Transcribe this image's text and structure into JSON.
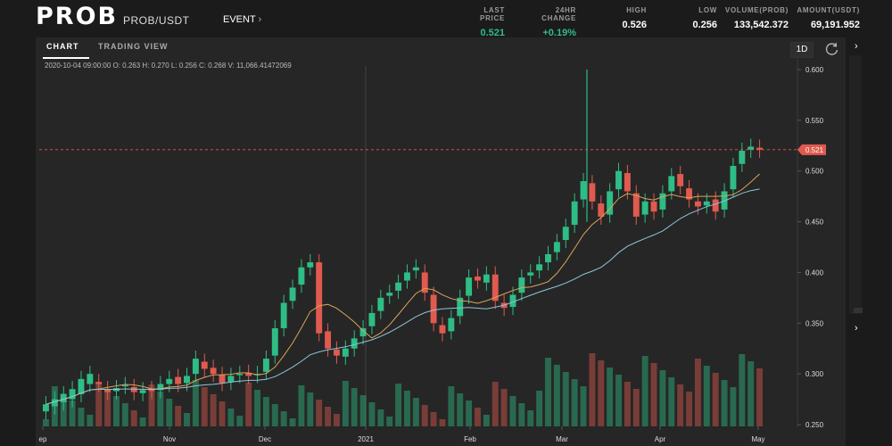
{
  "header": {
    "logo": "PROB",
    "pair": "PROB/USDT",
    "event_label": "EVENT",
    "event_icon": "chevron-right-icon",
    "stats": [
      {
        "label": "LAST PRICE",
        "value": "0.521",
        "color": "#2ebd85"
      },
      {
        "label": "24HR CHANGE",
        "value": "+0.19%",
        "color": "#2ebd85"
      },
      {
        "label": "HIGH",
        "value": "0.526",
        "color": "#ffffff"
      },
      {
        "label": "LOW",
        "value": "0.256",
        "color": "#ffffff"
      },
      {
        "label": "VOLUME(PROB)",
        "value": "133,542.372",
        "color": "#ffffff"
      },
      {
        "label": "AMOUNT(USDT)",
        "value": "69,191.952",
        "color": "#ffffff"
      }
    ]
  },
  "chart_panel": {
    "tabs": [
      {
        "label": "CHART",
        "active": true
      },
      {
        "label": "TRADING VIEW",
        "active": false
      }
    ],
    "period": "1D",
    "reset_icon": "refresh-icon",
    "ohlc_info": "2020-10-04 09:00:00   O: 0.263   H: 0.270   L: 0.256   C: 0.268   V: 11,066.41472069",
    "last_price_tag": "0.521"
  },
  "colors": {
    "up": "#2ebd85",
    "down": "#e05a4f",
    "ma_fast": "#d9a45a",
    "ma_slow": "#8fc6d8",
    "price_line": "#e05a4f"
  },
  "chart_data": {
    "type": "candlestick",
    "title": "",
    "ylim": [
      0.25,
      0.6
    ],
    "yticks": [
      "0.600",
      "0.550",
      "0.500",
      "0.450",
      "0.400",
      "0.350",
      "0.300",
      "0.250"
    ],
    "xticks": [
      "ep",
      "Nov",
      "Dec",
      "2021",
      "Feb",
      "Mar",
      "Apr",
      "May"
    ],
    "last_price": 0.521,
    "series": [
      {
        "name": "price",
        "points": [
          [
            0.263,
            0.27
          ],
          [
            0.268,
            0.275
          ],
          [
            0.272,
            0.28
          ],
          [
            0.275,
            0.285
          ],
          [
            0.28,
            0.295
          ],
          [
            0.29,
            0.3
          ],
          [
            0.292,
            0.29
          ],
          [
            0.285,
            0.282
          ],
          [
            0.283,
            0.286
          ],
          [
            0.288,
            0.289
          ],
          [
            0.287,
            0.282
          ],
          [
            0.281,
            0.284
          ],
          [
            0.285,
            0.283
          ],
          [
            0.284,
            0.29
          ],
          [
            0.29,
            0.295
          ],
          [
            0.297,
            0.29
          ],
          [
            0.291,
            0.298
          ],
          [
            0.3,
            0.315
          ],
          [
            0.312,
            0.305
          ],
          [
            0.306,
            0.3
          ],
          [
            0.299,
            0.291
          ],
          [
            0.292,
            0.298
          ],
          [
            0.299,
            0.3
          ],
          [
            0.301,
            0.298
          ],
          [
            0.299,
            0.3
          ],
          [
            0.302,
            0.315
          ],
          [
            0.318,
            0.345
          ],
          [
            0.345,
            0.37
          ],
          [
            0.372,
            0.385
          ],
          [
            0.388,
            0.405
          ],
          [
            0.405,
            0.41
          ],
          [
            0.41,
            0.34
          ],
          [
            0.342,
            0.325
          ],
          [
            0.324,
            0.318
          ],
          [
            0.317,
            0.325
          ],
          [
            0.325,
            0.335
          ],
          [
            0.337,
            0.345
          ],
          [
            0.347,
            0.36
          ],
          [
            0.362,
            0.375
          ],
          [
            0.377,
            0.38
          ],
          [
            0.382,
            0.39
          ],
          [
            0.392,
            0.4
          ],
          [
            0.402,
            0.405
          ],
          [
            0.4,
            0.38
          ],
          [
            0.378,
            0.35
          ],
          [
            0.348,
            0.34
          ],
          [
            0.342,
            0.355
          ],
          [
            0.357,
            0.375
          ],
          [
            0.377,
            0.395
          ],
          [
            0.396,
            0.392
          ],
          [
            0.39,
            0.398
          ],
          [
            0.398,
            0.372
          ],
          [
            0.37,
            0.365
          ],
          [
            0.366,
            0.378
          ],
          [
            0.38,
            0.395
          ],
          [
            0.397,
            0.4
          ],
          [
            0.402,
            0.408
          ],
          [
            0.41,
            0.418
          ],
          [
            0.42,
            0.43
          ],
          [
            0.432,
            0.445
          ],
          [
            0.447,
            0.47
          ],
          [
            0.472,
            0.49
          ],
          [
            0.488,
            0.47
          ],
          [
            0.468,
            0.455
          ],
          [
            0.457,
            0.48
          ],
          [
            0.482,
            0.5
          ],
          [
            0.498,
            0.48
          ],
          [
            0.478,
            0.455
          ],
          [
            0.457,
            0.47
          ],
          [
            0.47,
            0.46
          ],
          [
            0.462,
            0.478
          ],
          [
            0.48,
            0.495
          ],
          [
            0.497,
            0.485
          ],
          [
            0.483,
            0.472
          ],
          [
            0.47,
            0.465
          ],
          [
            0.466,
            0.47
          ],
          [
            0.472,
            0.46
          ],
          [
            0.462,
            0.48
          ],
          [
            0.482,
            0.505
          ],
          [
            0.507,
            0.52
          ],
          [
            0.521,
            0.524
          ],
          [
            0.523,
            0.521
          ]
        ]
      }
    ]
  }
}
